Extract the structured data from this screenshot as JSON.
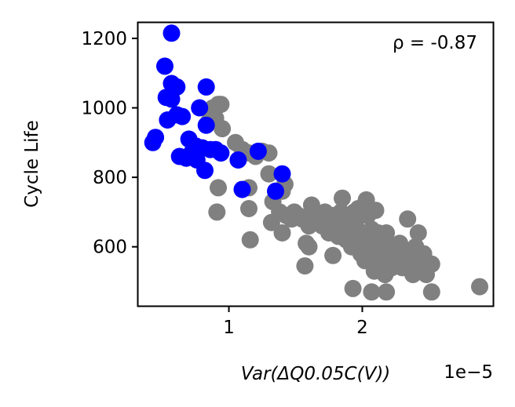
{
  "chart_data": {
    "type": "scatter",
    "title": "",
    "xlabel": "Var(ΔQ0.05C(V))",
    "ylabel": "Cycle Life",
    "x_scale_label": "1e−5",
    "xlim": [
      0.32,
      2.98
    ],
    "ylim": [
      430,
      1245
    ],
    "x_ticks": [
      1,
      2
    ],
    "y_ticks": [
      600,
      800,
      1000,
      1200
    ],
    "annotation": "ρ = -0.87",
    "grid": false,
    "legend": "none",
    "series": [
      {
        "color": "#808080",
        "points": [
          [
            0.92,
            1010
          ],
          [
            0.88,
            1000
          ],
          [
            0.94,
            1010
          ],
          [
            0.85,
            960
          ],
          [
            0.9,
            970
          ],
          [
            0.95,
            940
          ],
          [
            1.05,
            900
          ],
          [
            1.1,
            880
          ],
          [
            1.15,
            870
          ],
          [
            1.2,
            860
          ],
          [
            1.25,
            875
          ],
          [
            1.3,
            870
          ],
          [
            0.92,
            770
          ],
          [
            0.91,
            700
          ],
          [
            1.15,
            770
          ],
          [
            1.15,
            710
          ],
          [
            1.16,
            620
          ],
          [
            1.3,
            810
          ],
          [
            1.33,
            730
          ],
          [
            1.4,
            760
          ],
          [
            1.42,
            780
          ],
          [
            1.32,
            670
          ],
          [
            1.38,
            700
          ],
          [
            1.4,
            640
          ],
          [
            1.43,
            690
          ],
          [
            1.47,
            680
          ],
          [
            1.49,
            700
          ],
          [
            1.52,
            690
          ],
          [
            1.55,
            680
          ],
          [
            1.58,
            610
          ],
          [
            1.6,
            660
          ],
          [
            1.62,
            720
          ],
          [
            1.65,
            700
          ],
          [
            1.68,
            690
          ],
          [
            1.7,
            660
          ],
          [
            1.72,
            700
          ],
          [
            1.75,
            640
          ],
          [
            1.78,
            690
          ],
          [
            1.8,
            650
          ],
          [
            1.82,
            630
          ],
          [
            1.84,
            700
          ],
          [
            1.86,
            660
          ],
          [
            1.88,
            620
          ],
          [
            1.89,
            680
          ],
          [
            1.9,
            640
          ],
          [
            1.92,
            600
          ],
          [
            1.94,
            700
          ],
          [
            1.95,
            660
          ],
          [
            1.96,
            620
          ],
          [
            1.97,
            710
          ],
          [
            1.98,
            640
          ],
          [
            1.99,
            580
          ],
          [
            2.0,
            600
          ],
          [
            2.01,
            640
          ],
          [
            2.02,
            560
          ],
          [
            2.03,
            620
          ],
          [
            2.04,
            690
          ],
          [
            2.05,
            600
          ],
          [
            2.06,
            570
          ],
          [
            2.07,
            650
          ],
          [
            2.08,
            610
          ],
          [
            2.09,
            530
          ],
          [
            2.1,
            560
          ],
          [
            2.11,
            600
          ],
          [
            2.12,
            640
          ],
          [
            2.13,
            590
          ],
          [
            2.14,
            550
          ],
          [
            2.15,
            610
          ],
          [
            2.16,
            560
          ],
          [
            2.17,
            520
          ],
          [
            2.18,
            640
          ],
          [
            2.2,
            580
          ],
          [
            2.22,
            540
          ],
          [
            2.24,
            600
          ],
          [
            2.26,
            560
          ],
          [
            2.28,
            610
          ],
          [
            2.3,
            540
          ],
          [
            2.32,
            590
          ],
          [
            2.34,
            680
          ],
          [
            2.36,
            560
          ],
          [
            2.38,
            520
          ],
          [
            2.4,
            600
          ],
          [
            2.42,
            640
          ],
          [
            2.44,
            560
          ],
          [
            2.46,
            580
          ],
          [
            2.48,
            520
          ],
          [
            2.52,
            550
          ],
          [
            2.03,
            735
          ],
          [
            2.1,
            705
          ],
          [
            1.6,
            600
          ],
          [
            1.57,
            545
          ],
          [
            1.78,
            575
          ],
          [
            1.93,
            480
          ],
          [
            2.07,
            470
          ],
          [
            2.18,
            470
          ],
          [
            2.52,
            470
          ],
          [
            2.88,
            485
          ],
          [
            1.85,
            740
          ],
          [
            1.98,
            690
          ],
          [
            2.0,
            700
          ]
        ]
      },
      {
        "color": "#0000ff",
        "points": [
          [
            0.57,
            1215
          ],
          [
            0.52,
            1120
          ],
          [
            0.57,
            1070
          ],
          [
            0.61,
            1060
          ],
          [
            0.83,
            1060
          ],
          [
            0.53,
            1030
          ],
          [
            0.57,
            1025
          ],
          [
            0.61,
            980
          ],
          [
            0.65,
            975
          ],
          [
            0.78,
            1000
          ],
          [
            0.54,
            965
          ],
          [
            0.83,
            950
          ],
          [
            0.43,
            900
          ],
          [
            0.45,
            915
          ],
          [
            0.7,
            910
          ],
          [
            0.75,
            890
          ],
          [
            0.8,
            885
          ],
          [
            0.86,
            880
          ],
          [
            0.9,
            880
          ],
          [
            0.94,
            870
          ],
          [
            0.63,
            860
          ],
          [
            0.68,
            855
          ],
          [
            0.72,
            870
          ],
          [
            0.76,
            850
          ],
          [
            0.82,
            820
          ],
          [
            1.07,
            850
          ],
          [
            1.22,
            875
          ],
          [
            1.1,
            765
          ],
          [
            1.4,
            810
          ],
          [
            1.35,
            760
          ]
        ]
      }
    ]
  }
}
